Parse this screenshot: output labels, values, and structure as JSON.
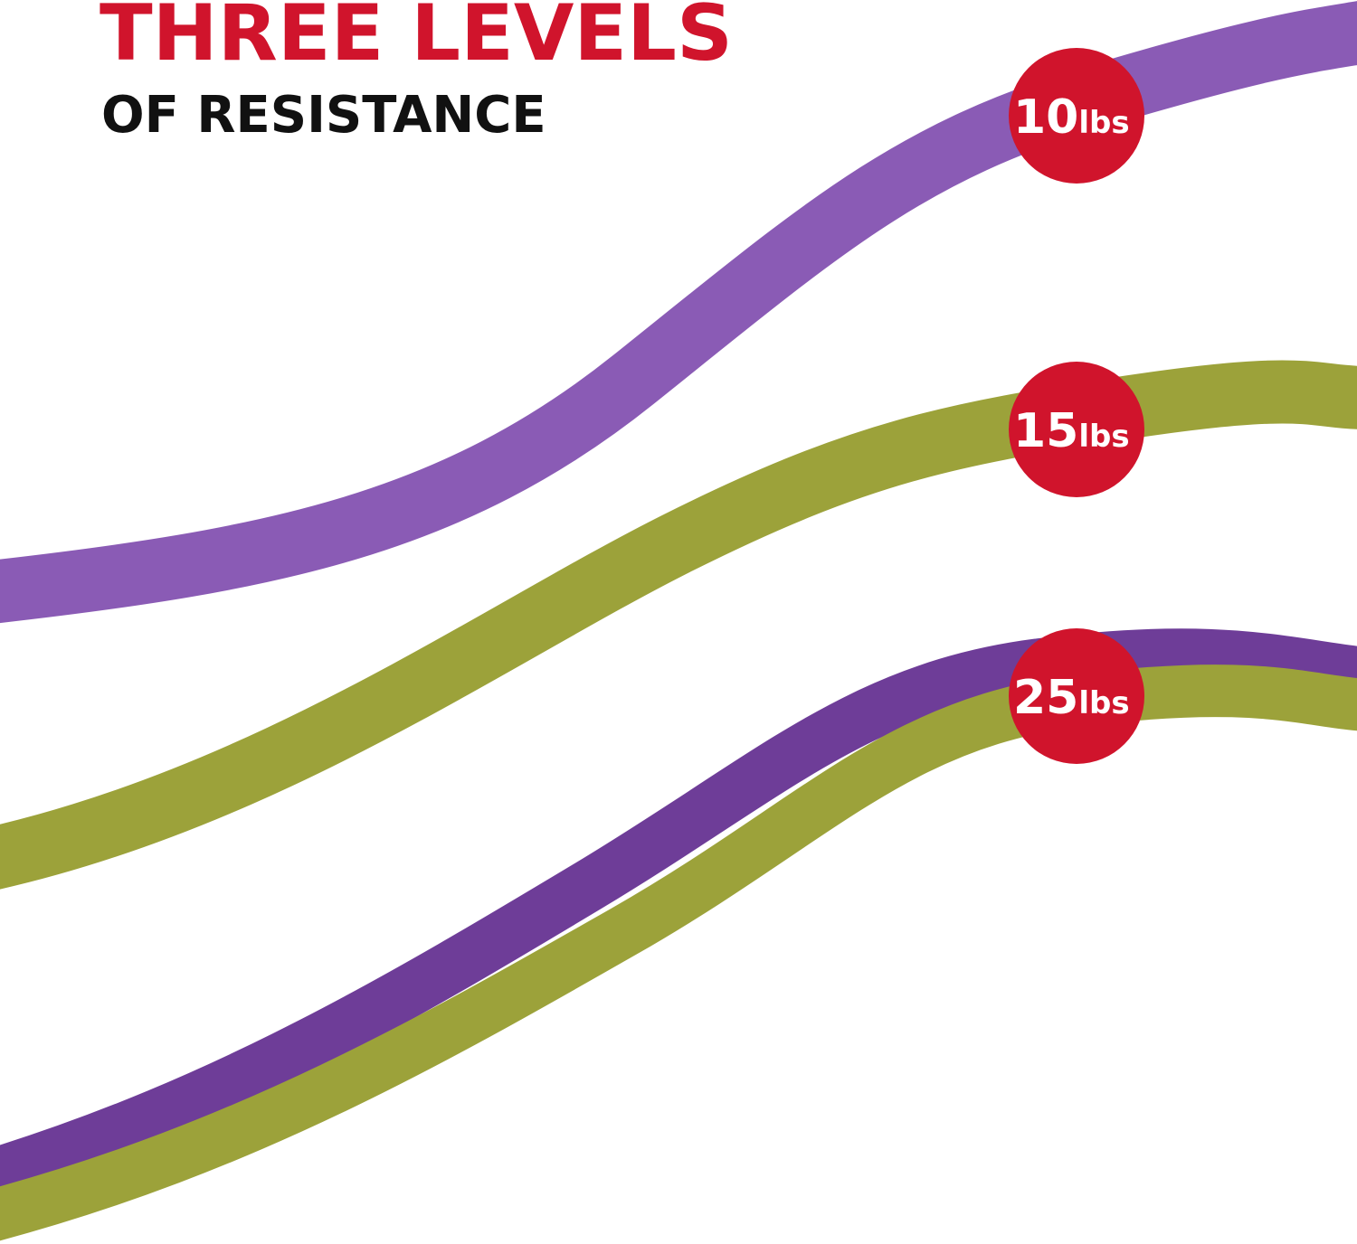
{
  "header": {
    "title": "THREE LEVELS",
    "subtitle": "OF RESISTANCE"
  },
  "badges": [
    {
      "number": "10",
      "unit": "lbs"
    },
    {
      "number": "15",
      "unit": "lbs"
    },
    {
      "number": "25",
      "unit": "lbs"
    }
  ]
}
